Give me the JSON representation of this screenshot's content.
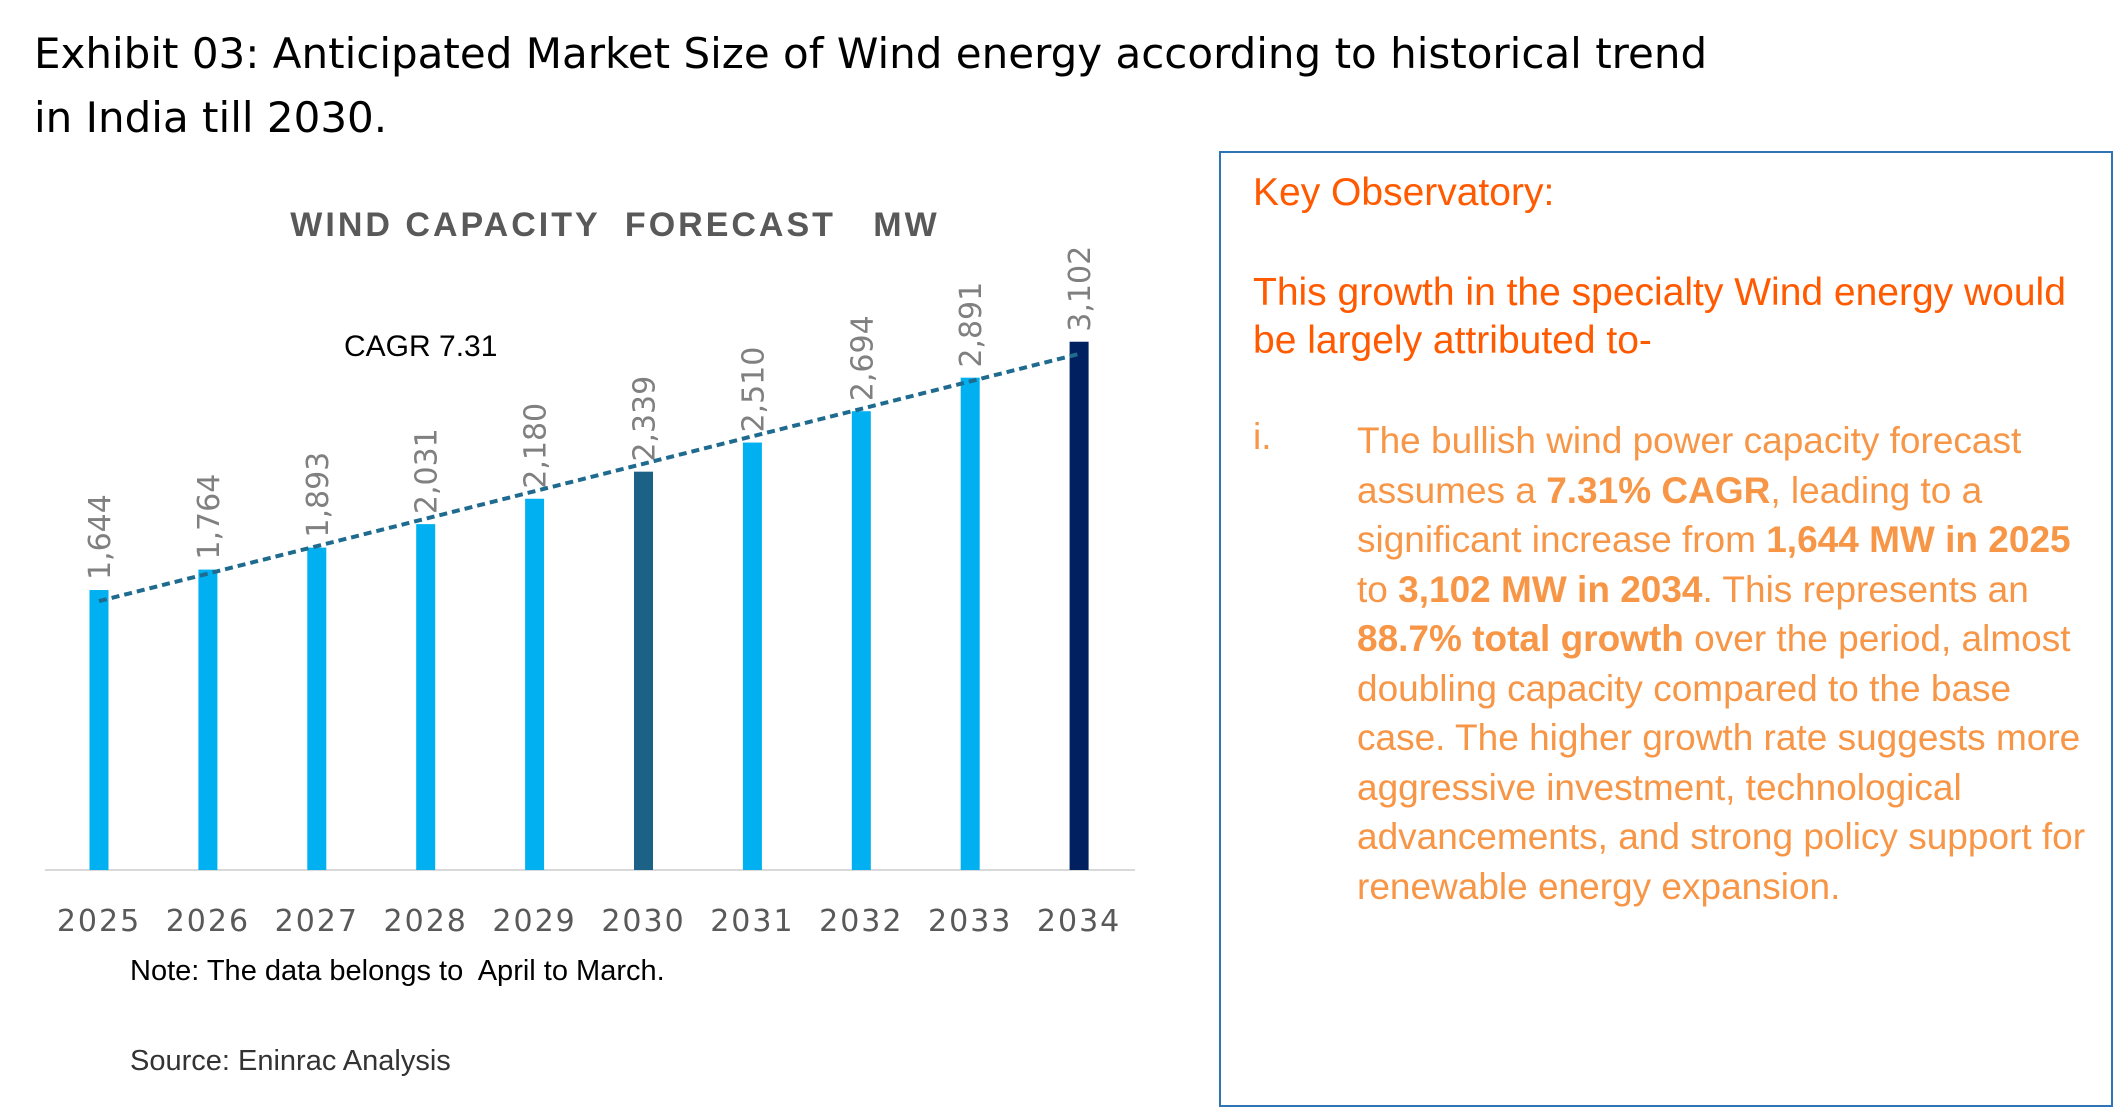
{
  "exhibit_title": "Exhibit 03: Anticipated Market Size of Wind energy according to historical trend in India till 2030.",
  "note": "Note: The data belongs to  April to March.",
  "source": "Source: Eninrac Analysis",
  "chart_data": {
    "type": "bar",
    "title": "WIND CAPACITY  FORECAST   MW",
    "categories": [
      "2025",
      "2026",
      "2027",
      "2028",
      "2029",
      "2030",
      "2031",
      "2032",
      "2033",
      "2034"
    ],
    "values": [
      1644,
      1764,
      1893,
      2031,
      2180,
      2339,
      2510,
      2694,
      2891,
      3102
    ],
    "value_labels": [
      "1,644",
      "1,764",
      "1,893",
      "2,031",
      "2,180",
      "2,339",
      "2,510",
      "2,694",
      "2,891",
      "3,102"
    ],
    "bar_colors": [
      "#00b0f0",
      "#00b0f0",
      "#00b0f0",
      "#00b0f0",
      "#00b0f0",
      "#1b6286",
      "#00b0f0",
      "#00b0f0",
      "#00b0f0",
      "#002060"
    ],
    "trendline": {
      "type": "linear",
      "style": "dashed",
      "color": "#1f6b8f"
    },
    "annotation": "CAGR 7.31",
    "ylim": [
      0,
      3200
    ],
    "grid": false,
    "legend": "none"
  },
  "observations": {
    "heading": "Key Observatory:",
    "intro": "This growth in the specialty Wind energy would be largely attributed to-",
    "items": [
      {
        "marker": "i.",
        "parts": [
          {
            "t": "The bullish wind power capacity forecast assumes a ",
            "b": false
          },
          {
            "t": "7.31% CAGR",
            "b": true
          },
          {
            "t": ", leading to a significant increase from ",
            "b": false
          },
          {
            "t": "1,644 MW in 2025",
            "b": true
          },
          {
            "t": " to ",
            "b": false
          },
          {
            "t": "3,102 MW in 2034",
            "b": true
          },
          {
            "t": ". This represents an ",
            "b": false
          },
          {
            "t": "88.7% total growth",
            "b": true
          },
          {
            "t": " over the period, almost doubling capacity compared to the base case. The higher growth rate suggests more aggressive investment, technological advancements, and strong policy support for renewable energy expansion.",
            "b": false
          }
        ]
      }
    ]
  }
}
